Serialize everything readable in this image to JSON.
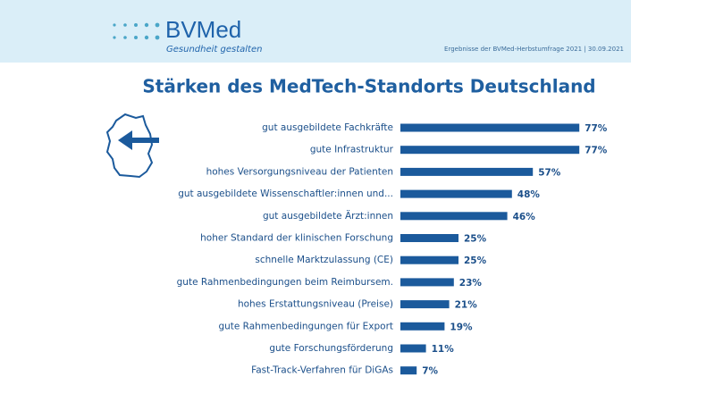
{
  "header": {
    "logo": "BVMed",
    "tagline": "Gesundheit gestalten",
    "source": "Ergebnisse der BVMed-Herbstumfrage 2021 | 30.09.2021"
  },
  "chart_data": {
    "type": "bar",
    "orientation": "horizontal",
    "title": "Stärken des MedTech-Standorts Deutschland",
    "categories": [
      "gut ausgebildete Fachkräfte",
      "gute Infrastruktur",
      "hohes Versorgungsniveau der Patienten",
      "gut ausgebildete Wissenschaftler:innen und...",
      "gut ausgebildete Ärzt:innen",
      "hoher Standard der klinischen Forschung",
      "schnelle Marktzulassung (CE)",
      "gute Rahmenbedingungen beim Reimbursem.",
      "hohes Erstattungsniveau (Preise)",
      "gute Rahmenbedingungen für Export",
      "gute Forschungsförderung",
      "Fast-Track-Verfahren für DiGAs"
    ],
    "values": [
      77,
      77,
      57,
      48,
      46,
      25,
      25,
      23,
      21,
      19,
      11,
      7
    ],
    "value_labels": [
      "77%",
      "77%",
      "57%",
      "48%",
      "46%",
      "25%",
      "25%",
      "23%",
      "21%",
      "19%",
      "11%",
      "7%"
    ],
    "color": "#1b5a9c"
  }
}
